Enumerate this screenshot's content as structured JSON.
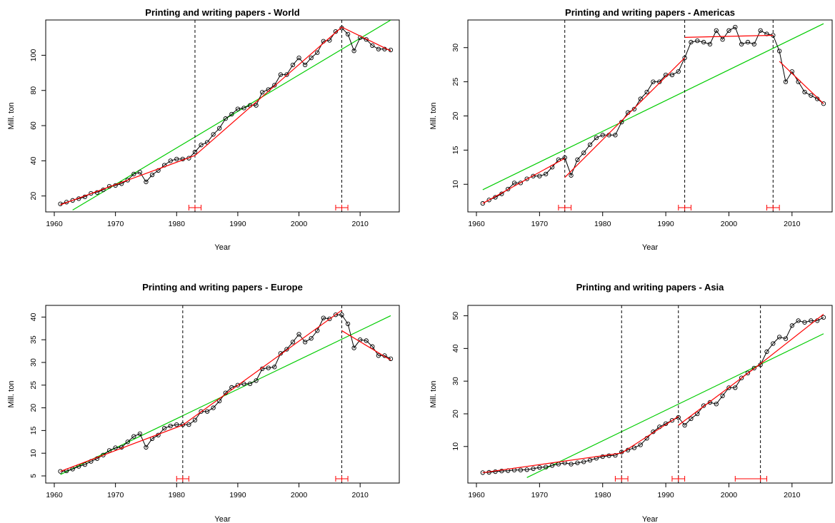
{
  "chart_data": [
    {
      "type": "line",
      "title": "Printing and writing papers - World",
      "xlabel": "Year",
      "ylabel": "Mill. ton",
      "xlim": [
        1960,
        2015
      ],
      "ylim": [
        15,
        116
      ],
      "xticks": [
        1960,
        1970,
        1980,
        1990,
        2000,
        2010
      ],
      "yticks": [
        20,
        40,
        60,
        80,
        100
      ],
      "grid": false,
      "legend": "none",
      "colors": {
        "observed": "#000000",
        "piecewise": "#ff0000",
        "linear": "#00cc00",
        "breakpoint": "#000000",
        "interval": "#ff0000"
      },
      "x": [
        1961,
        1962,
        1963,
        1964,
        1965,
        1966,
        1967,
        1968,
        1969,
        1970,
        1971,
        1972,
        1973,
        1974,
        1975,
        1976,
        1977,
        1978,
        1979,
        1980,
        1981,
        1982,
        1983,
        1984,
        1985,
        1986,
        1987,
        1988,
        1989,
        1990,
        1991,
        1992,
        1993,
        1994,
        1995,
        1996,
        1997,
        1998,
        1999,
        2000,
        2001,
        2002,
        2003,
        2004,
        2005,
        2006,
        2007,
        2008,
        2009,
        2010,
        2011,
        2012,
        2013,
        2014,
        2015
      ],
      "series": [
        {
          "values": [
            15.5,
            16.5,
            17.5,
            18.5,
            19.5,
            21.5,
            22.0,
            23.5,
            25.5,
            26.0,
            27.0,
            29.0,
            32.5,
            33.5,
            28.0,
            32.0,
            34.5,
            37.5,
            40.0,
            41.0,
            41.0,
            41.5,
            45.0,
            49.0,
            50.5,
            55.0,
            58.5,
            64.0,
            66.5,
            69.5,
            70.0,
            71.5,
            71.5,
            79.0,
            80.5,
            83.0,
            89.0,
            89.0,
            94.5,
            98.5,
            94.5,
            98.5,
            101.5,
            108.0,
            108.5,
            113.5,
            115.5,
            112.0,
            102.5,
            110.0,
            109.0,
            105.5,
            103.5,
            103.5,
            103.0
          ]
        }
      ],
      "piecewise_fit": [
        {
          "x": [
            1961,
            1983
          ],
          "y": [
            15.0,
            43.0
          ]
        },
        {
          "x": [
            1983,
            2007
          ],
          "y": [
            43.0,
            116.0
          ]
        },
        {
          "x": [
            2007,
            2015
          ],
          "y": [
            116.0,
            102.5
          ]
        }
      ],
      "linear_fit": {
        "x": [
          1963,
          2015
        ],
        "y": [
          12.0,
          120.0
        ]
      },
      "breakpoints": [
        1983,
        2007
      ],
      "breakpoint_ci": [
        [
          1982,
          1984
        ],
        [
          2006,
          2008
        ]
      ]
    },
    {
      "type": "line",
      "title": "Printing and writing papers - Americas",
      "xlabel": "Year",
      "ylabel": "Mill. ton",
      "xlim": [
        1960,
        2015
      ],
      "ylim": [
        7,
        33
      ],
      "xticks": [
        1960,
        1970,
        1980,
        1990,
        2000,
        2010
      ],
      "yticks": [
        10,
        15,
        20,
        25,
        30
      ],
      "grid": false,
      "legend": "none",
      "colors": {
        "observed": "#000000",
        "piecewise": "#ff0000",
        "linear": "#00cc00",
        "breakpoint": "#000000",
        "interval": "#ff0000"
      },
      "x": [
        1961,
        1962,
        1963,
        1964,
        1965,
        1966,
        1967,
        1968,
        1969,
        1970,
        1971,
        1972,
        1973,
        1974,
        1975,
        1976,
        1977,
        1978,
        1979,
        1980,
        1981,
        1982,
        1983,
        1984,
        1985,
        1986,
        1987,
        1988,
        1989,
        1990,
        1991,
        1992,
        1993,
        1994,
        1995,
        1996,
        1997,
        1998,
        1999,
        2000,
        2001,
        2002,
        2003,
        2004,
        2005,
        2006,
        2007,
        2008,
        2009,
        2010,
        2011,
        2012,
        2013,
        2014,
        2015
      ],
      "series": [
        {
          "values": [
            7.2,
            7.7,
            8.1,
            8.6,
            9.3,
            10.2,
            10.2,
            10.8,
            11.2,
            11.2,
            11.5,
            12.5,
            13.6,
            13.9,
            11.3,
            13.6,
            14.6,
            15.8,
            16.8,
            17.2,
            17.2,
            17.2,
            19.1,
            20.5,
            21.0,
            22.5,
            23.5,
            25.0,
            25.0,
            26.0,
            26.0,
            26.5,
            28.5,
            30.8,
            31.0,
            30.8,
            30.5,
            32.5,
            31.2,
            32.5,
            33.0,
            30.5,
            30.8,
            30.5,
            32.5,
            32.0,
            31.8,
            29.5,
            25.0,
            26.5,
            25.0,
            23.5,
            23.0,
            22.5,
            21.8
          ]
        }
      ],
      "piecewise_fit": [
        {
          "x": [
            1961,
            1974
          ],
          "y": [
            7.2,
            13.8
          ]
        },
        {
          "x": [
            1974,
            1993
          ],
          "y": [
            11.0,
            28.5
          ]
        },
        {
          "x": [
            1993,
            2007
          ],
          "y": [
            31.5,
            31.8
          ]
        },
        {
          "x": [
            2008,
            2015
          ],
          "y": [
            28.0,
            21.8
          ]
        }
      ],
      "linear_fit": {
        "x": [
          1961,
          2015
        ],
        "y": [
          9.2,
          33.5
        ]
      },
      "breakpoints": [
        1974,
        1993,
        2007
      ],
      "breakpoint_ci": [
        [
          1973,
          1975
        ],
        [
          1992,
          1994
        ],
        [
          2006,
          2008
        ]
      ]
    },
    {
      "type": "line",
      "title": "Printing and writing papers - Europe",
      "xlabel": "Year",
      "ylabel": "Mill. ton",
      "xlim": [
        1960,
        2015
      ],
      "ylim": [
        5,
        41
      ],
      "xticks": [
        1960,
        1970,
        1980,
        1990,
        2000,
        2010
      ],
      "yticks": [
        5,
        10,
        15,
        20,
        25,
        30,
        35,
        40
      ],
      "grid": false,
      "legend": "none",
      "colors": {
        "observed": "#000000",
        "piecewise": "#ff0000",
        "linear": "#00cc00",
        "breakpoint": "#000000",
        "interval": "#ff0000"
      },
      "x": [
        1961,
        1962,
        1963,
        1964,
        1965,
        1966,
        1967,
        1968,
        1969,
        1970,
        1971,
        1972,
        1973,
        1974,
        1975,
        1976,
        1977,
        1978,
        1979,
        1980,
        1981,
        1982,
        1983,
        1984,
        1985,
        1986,
        1987,
        1988,
        1989,
        1990,
        1991,
        1992,
        1993,
        1994,
        1995,
        1996,
        1997,
        1998,
        1999,
        2000,
        2001,
        2002,
        2003,
        2004,
        2005,
        2006,
        2007,
        2008,
        2009,
        2010,
        2011,
        2012,
        2013,
        2014,
        2015
      ],
      "series": [
        {
          "values": [
            6.0,
            6.1,
            6.5,
            7.1,
            7.5,
            8.2,
            8.8,
            9.6,
            10.6,
            11.2,
            11.3,
            12.5,
            13.7,
            14.3,
            11.3,
            13.2,
            14.0,
            15.5,
            16.0,
            16.3,
            16.3,
            16.3,
            17.3,
            19.2,
            19.2,
            20.0,
            21.5,
            23.3,
            24.5,
            25.0,
            25.3,
            25.3,
            26.0,
            28.6,
            28.8,
            29.0,
            32.0,
            32.9,
            34.5,
            36.2,
            34.5,
            35.3,
            37.0,
            39.8,
            39.6,
            40.5,
            40.5,
            38.5,
            33.2,
            35.0,
            34.8,
            33.5,
            31.5,
            31.5,
            30.8
          ]
        }
      ],
      "piecewise_fit": [
        {
          "x": [
            1961,
            1981
          ],
          "y": [
            6.0,
            16.2
          ]
        },
        {
          "x": [
            1981,
            2007
          ],
          "y": [
            16.2,
            41.5
          ]
        },
        {
          "x": [
            2007,
            2015
          ],
          "y": [
            37.0,
            30.5
          ]
        }
      ],
      "linear_fit": {
        "x": [
          1961,
          2015
        ],
        "y": [
          5.3,
          40.3
        ]
      },
      "breakpoints": [
        1981,
        2007
      ],
      "breakpoint_ci": [
        [
          1980,
          1982
        ],
        [
          2006,
          2008
        ]
      ]
    },
    {
      "type": "line",
      "title": "Printing and writing papers - Asia",
      "xlabel": "Year",
      "ylabel": "Mill. ton",
      "xlim": [
        1960,
        2015
      ],
      "ylim": [
        1,
        51
      ],
      "xticks": [
        1960,
        1970,
        1980,
        1990,
        2000,
        2010
      ],
      "yticks": [
        10,
        20,
        30,
        40,
        50
      ],
      "grid": false,
      "legend": "none",
      "colors": {
        "observed": "#000000",
        "piecewise": "#ff0000",
        "linear": "#00cc00",
        "breakpoint": "#000000",
        "interval": "#ff0000"
      },
      "x": [
        1961,
        1962,
        1963,
        1964,
        1965,
        1966,
        1967,
        1968,
        1969,
        1970,
        1971,
        1972,
        1973,
        1974,
        1975,
        1976,
        1977,
        1978,
        1979,
        1980,
        1981,
        1982,
        1983,
        1984,
        1985,
        1986,
        1987,
        1988,
        1989,
        1990,
        1991,
        1992,
        1993,
        1994,
        1995,
        1996,
        1997,
        1998,
        1999,
        2000,
        2001,
        2002,
        2003,
        2004,
        2005,
        2006,
        2007,
        2008,
        2009,
        2010,
        2011,
        2012,
        2013,
        2014,
        2015
      ],
      "series": [
        {
          "values": [
            2.0,
            2.1,
            2.3,
            2.5,
            2.6,
            2.8,
            2.8,
            2.9,
            3.2,
            3.6,
            3.7,
            4.2,
            4.6,
            5.0,
            4.6,
            5.0,
            5.3,
            5.8,
            6.4,
            6.9,
            7.2,
            7.3,
            8.3,
            8.9,
            9.6,
            10.5,
            12.5,
            14.5,
            16.0,
            17.0,
            18.0,
            18.9,
            16.5,
            18.5,
            20.0,
            22.5,
            23.5,
            23.0,
            25.5,
            28.0,
            28.0,
            31.0,
            32.5,
            34.0,
            35.0,
            39.0,
            41.5,
            43.5,
            43.0,
            47.0,
            48.5,
            48.0,
            48.5,
            48.5,
            49.5
          ]
        }
      ],
      "piecewise_fit": [
        {
          "x": [
            1961,
            1983
          ],
          "y": [
            2.0,
            8.0
          ]
        },
        {
          "x": [
            1983,
            1992
          ],
          "y": [
            8.0,
            19.2
          ]
        },
        {
          "x": [
            1992,
            2005
          ],
          "y": [
            16.5,
            35.3
          ]
        },
        {
          "x": [
            2005,
            2015
          ],
          "y": [
            35.3,
            50.5
          ]
        }
      ],
      "linear_fit": {
        "x": [
          1968,
          2015
        ],
        "y": [
          0.5,
          44.5
        ]
      },
      "breakpoints": [
        1983,
        1992,
        2005
      ],
      "breakpoint_ci": [
        [
          1982,
          1984
        ],
        [
          1991,
          1993
        ],
        [
          2001,
          2006
        ]
      ]
    }
  ]
}
